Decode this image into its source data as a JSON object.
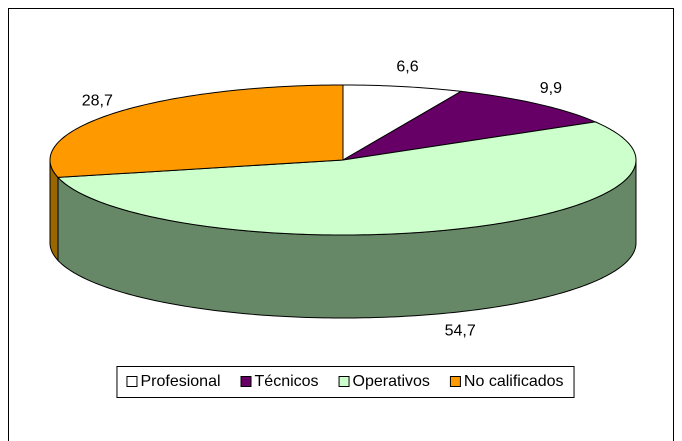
{
  "chart_data": {
    "type": "pie3d",
    "categories": [
      "Profesional",
      "Técnicos",
      "Operativos",
      "No calificados"
    ],
    "values": [
      6.6,
      9.9,
      54.7,
      28.7
    ],
    "value_labels": [
      "6,6",
      "9,9",
      "54,7",
      "28,7"
    ],
    "colors": [
      "#ffffff",
      "#660066",
      "#ccffcc",
      "#ff9900"
    ],
    "side_colors": [
      "#888888",
      "#330033",
      "#668866",
      "#996600"
    ],
    "legend": "bottom"
  }
}
